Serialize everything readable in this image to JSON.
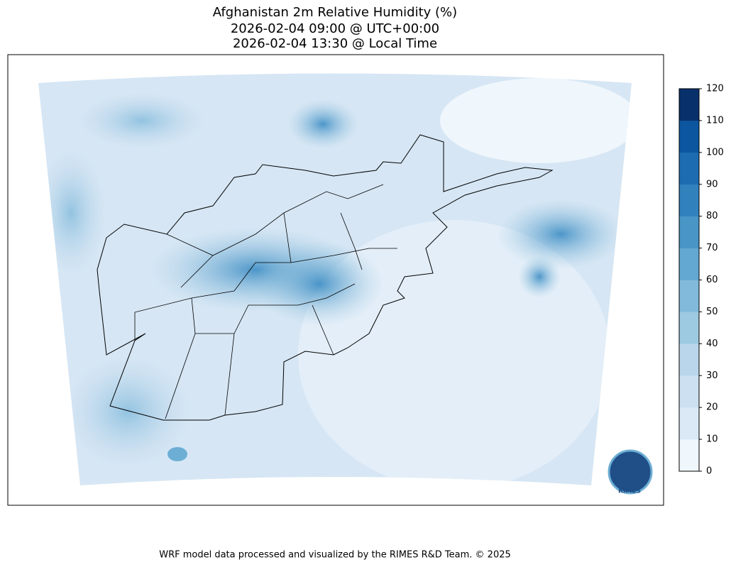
{
  "title": [
    "Afghanistan 2m Relative Humidity (%)",
    "2026-02-04 09:00 @ UTC+00:00",
    "2026-02-04 13:30 @ Local Time"
  ],
  "colorbar": {
    "lim": [
      0,
      120
    ],
    "ticks": [
      0,
      10,
      20,
      30,
      40,
      50,
      60,
      70,
      80,
      90,
      100,
      110,
      120
    ],
    "colors": [
      "#eff6fc",
      "#dbe9f6",
      "#cde0f1",
      "#bad6eb",
      "#9dcae1",
      "#81badb",
      "#62a8d2",
      "#4895c6",
      "#3181bd",
      "#1d6cb1",
      "#0c56a0",
      "#08306b"
    ]
  },
  "logo": "RIMES",
  "footer": "WRF model data processed and visualized by the RIMES R&D Team. © 2025"
}
